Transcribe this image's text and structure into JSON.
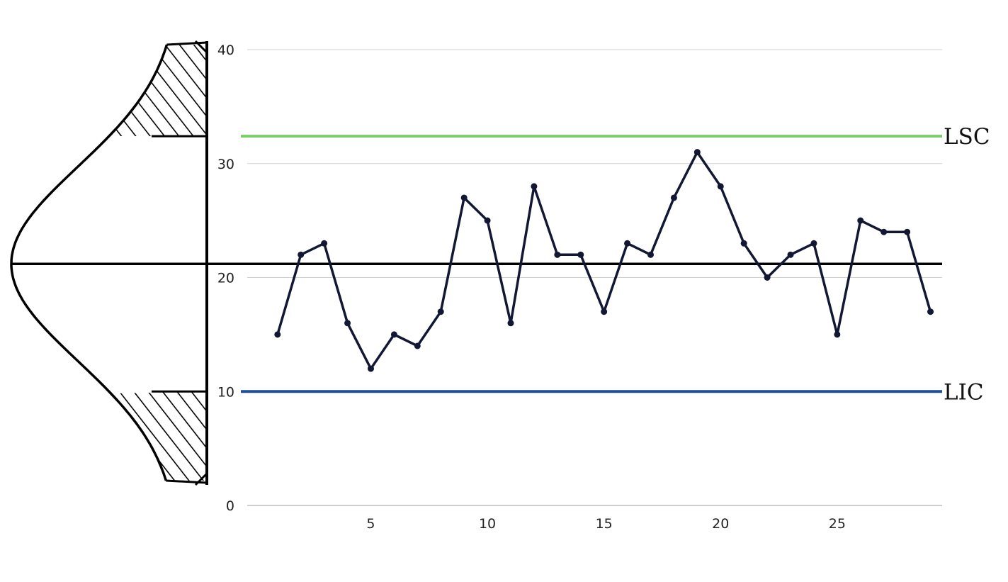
{
  "chart_data": {
    "type": "line",
    "title": "",
    "xlabel": "",
    "ylabel": "",
    "x": [
      1,
      2,
      3,
      4,
      5,
      6,
      7,
      8,
      9,
      10,
      11,
      12,
      13,
      14,
      15,
      16,
      17,
      18,
      19,
      20,
      21,
      22,
      23,
      24,
      25,
      26,
      27,
      28,
      29
    ],
    "series": [
      {
        "values": [
          15,
          22,
          23,
          16,
          12,
          15,
          14,
          17,
          27,
          25,
          16,
          28,
          22,
          22,
          17,
          23,
          22,
          27,
          31,
          28,
          23,
          20,
          22,
          23,
          15,
          25,
          24,
          24,
          17
        ]
      }
    ],
    "xlim": [
      -0.3,
      29.5
    ],
    "ylim": [
      0,
      40
    ],
    "x_ticks": [
      "5",
      "10",
      "15",
      "20",
      "25"
    ],
    "x_tick_values": [
      5,
      10,
      15,
      20,
      25
    ],
    "y_ticks": [
      "0",
      "10",
      "20",
      "30",
      "40"
    ],
    "y_tick_values": [
      0,
      10,
      20,
      30,
      40
    ],
    "grid": true,
    "center_line": {
      "value": 21.2
    },
    "limits": [
      {
        "label": "LSC",
        "value": 32.4,
        "color": "#7ecb6a"
      },
      {
        "label": "LIC",
        "value": 10.0,
        "color": "#1f4f96"
      }
    ],
    "colors": {
      "series": "#121833",
      "grid": "#d0d0d0",
      "axis": "#000000",
      "center_line": "#000000"
    },
    "distribution_sketch": "normal-curve-with-hatched-tails"
  }
}
